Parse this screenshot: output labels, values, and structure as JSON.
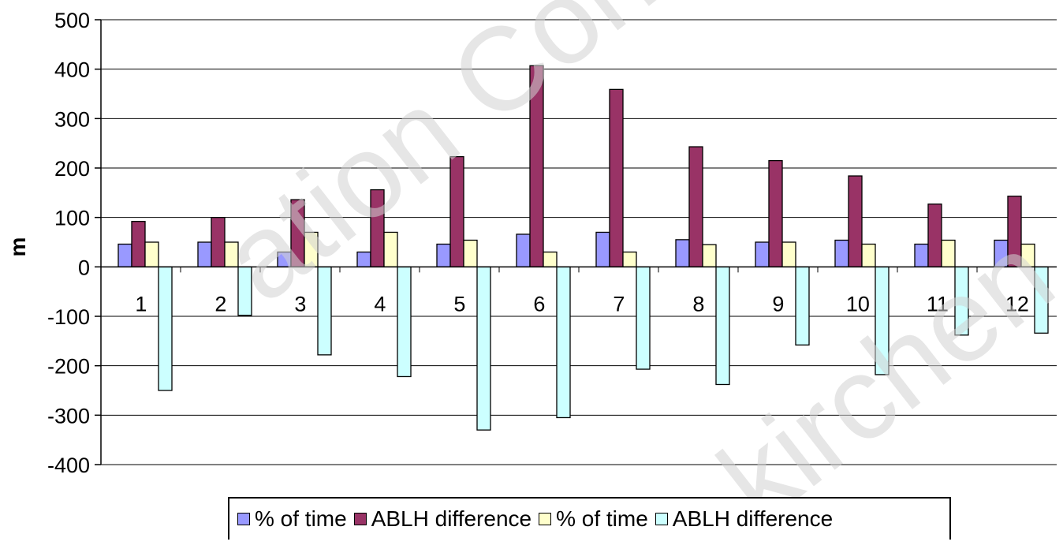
{
  "chart_data": {
    "type": "bar",
    "title": "",
    "xlabel": "",
    "ylabel": "m",
    "ylim": [
      -400,
      500
    ],
    "yticks": [
      "500",
      "400",
      "300",
      "200",
      "100",
      "0",
      "-100",
      "-200",
      "-300",
      "-400"
    ],
    "categories": [
      "1",
      "2",
      "3",
      "4",
      "5",
      "6",
      "7",
      "8",
      "9",
      "10",
      "11",
      "12"
    ],
    "grid": true,
    "legend_position": "bottom",
    "series": [
      {
        "name": "% of time",
        "color": "#9999ff",
        "values": [
          46,
          50,
          30,
          30,
          46,
          66,
          70,
          55,
          50,
          54,
          46,
          54
        ]
      },
      {
        "name": "ABLH difference",
        "color": "#993366",
        "values": [
          92,
          100,
          136,
          156,
          223,
          407,
          359,
          243,
          215,
          184,
          127,
          143
        ]
      },
      {
        "name": "% of time",
        "color": "#ffffcc",
        "values": [
          50,
          50,
          70,
          70,
          54,
          30,
          30,
          45,
          50,
          46,
          54,
          46
        ]
      },
      {
        "name": "ABLH difference",
        "color": "#ccffff",
        "values": [
          -250,
          -98,
          -178,
          -222,
          -330,
          -305,
          -207,
          -238,
          -158,
          -218,
          -138,
          -134
        ]
      }
    ]
  },
  "watermark": {
    "line1": "ation Conference",
    "line2": "kirchen"
  }
}
